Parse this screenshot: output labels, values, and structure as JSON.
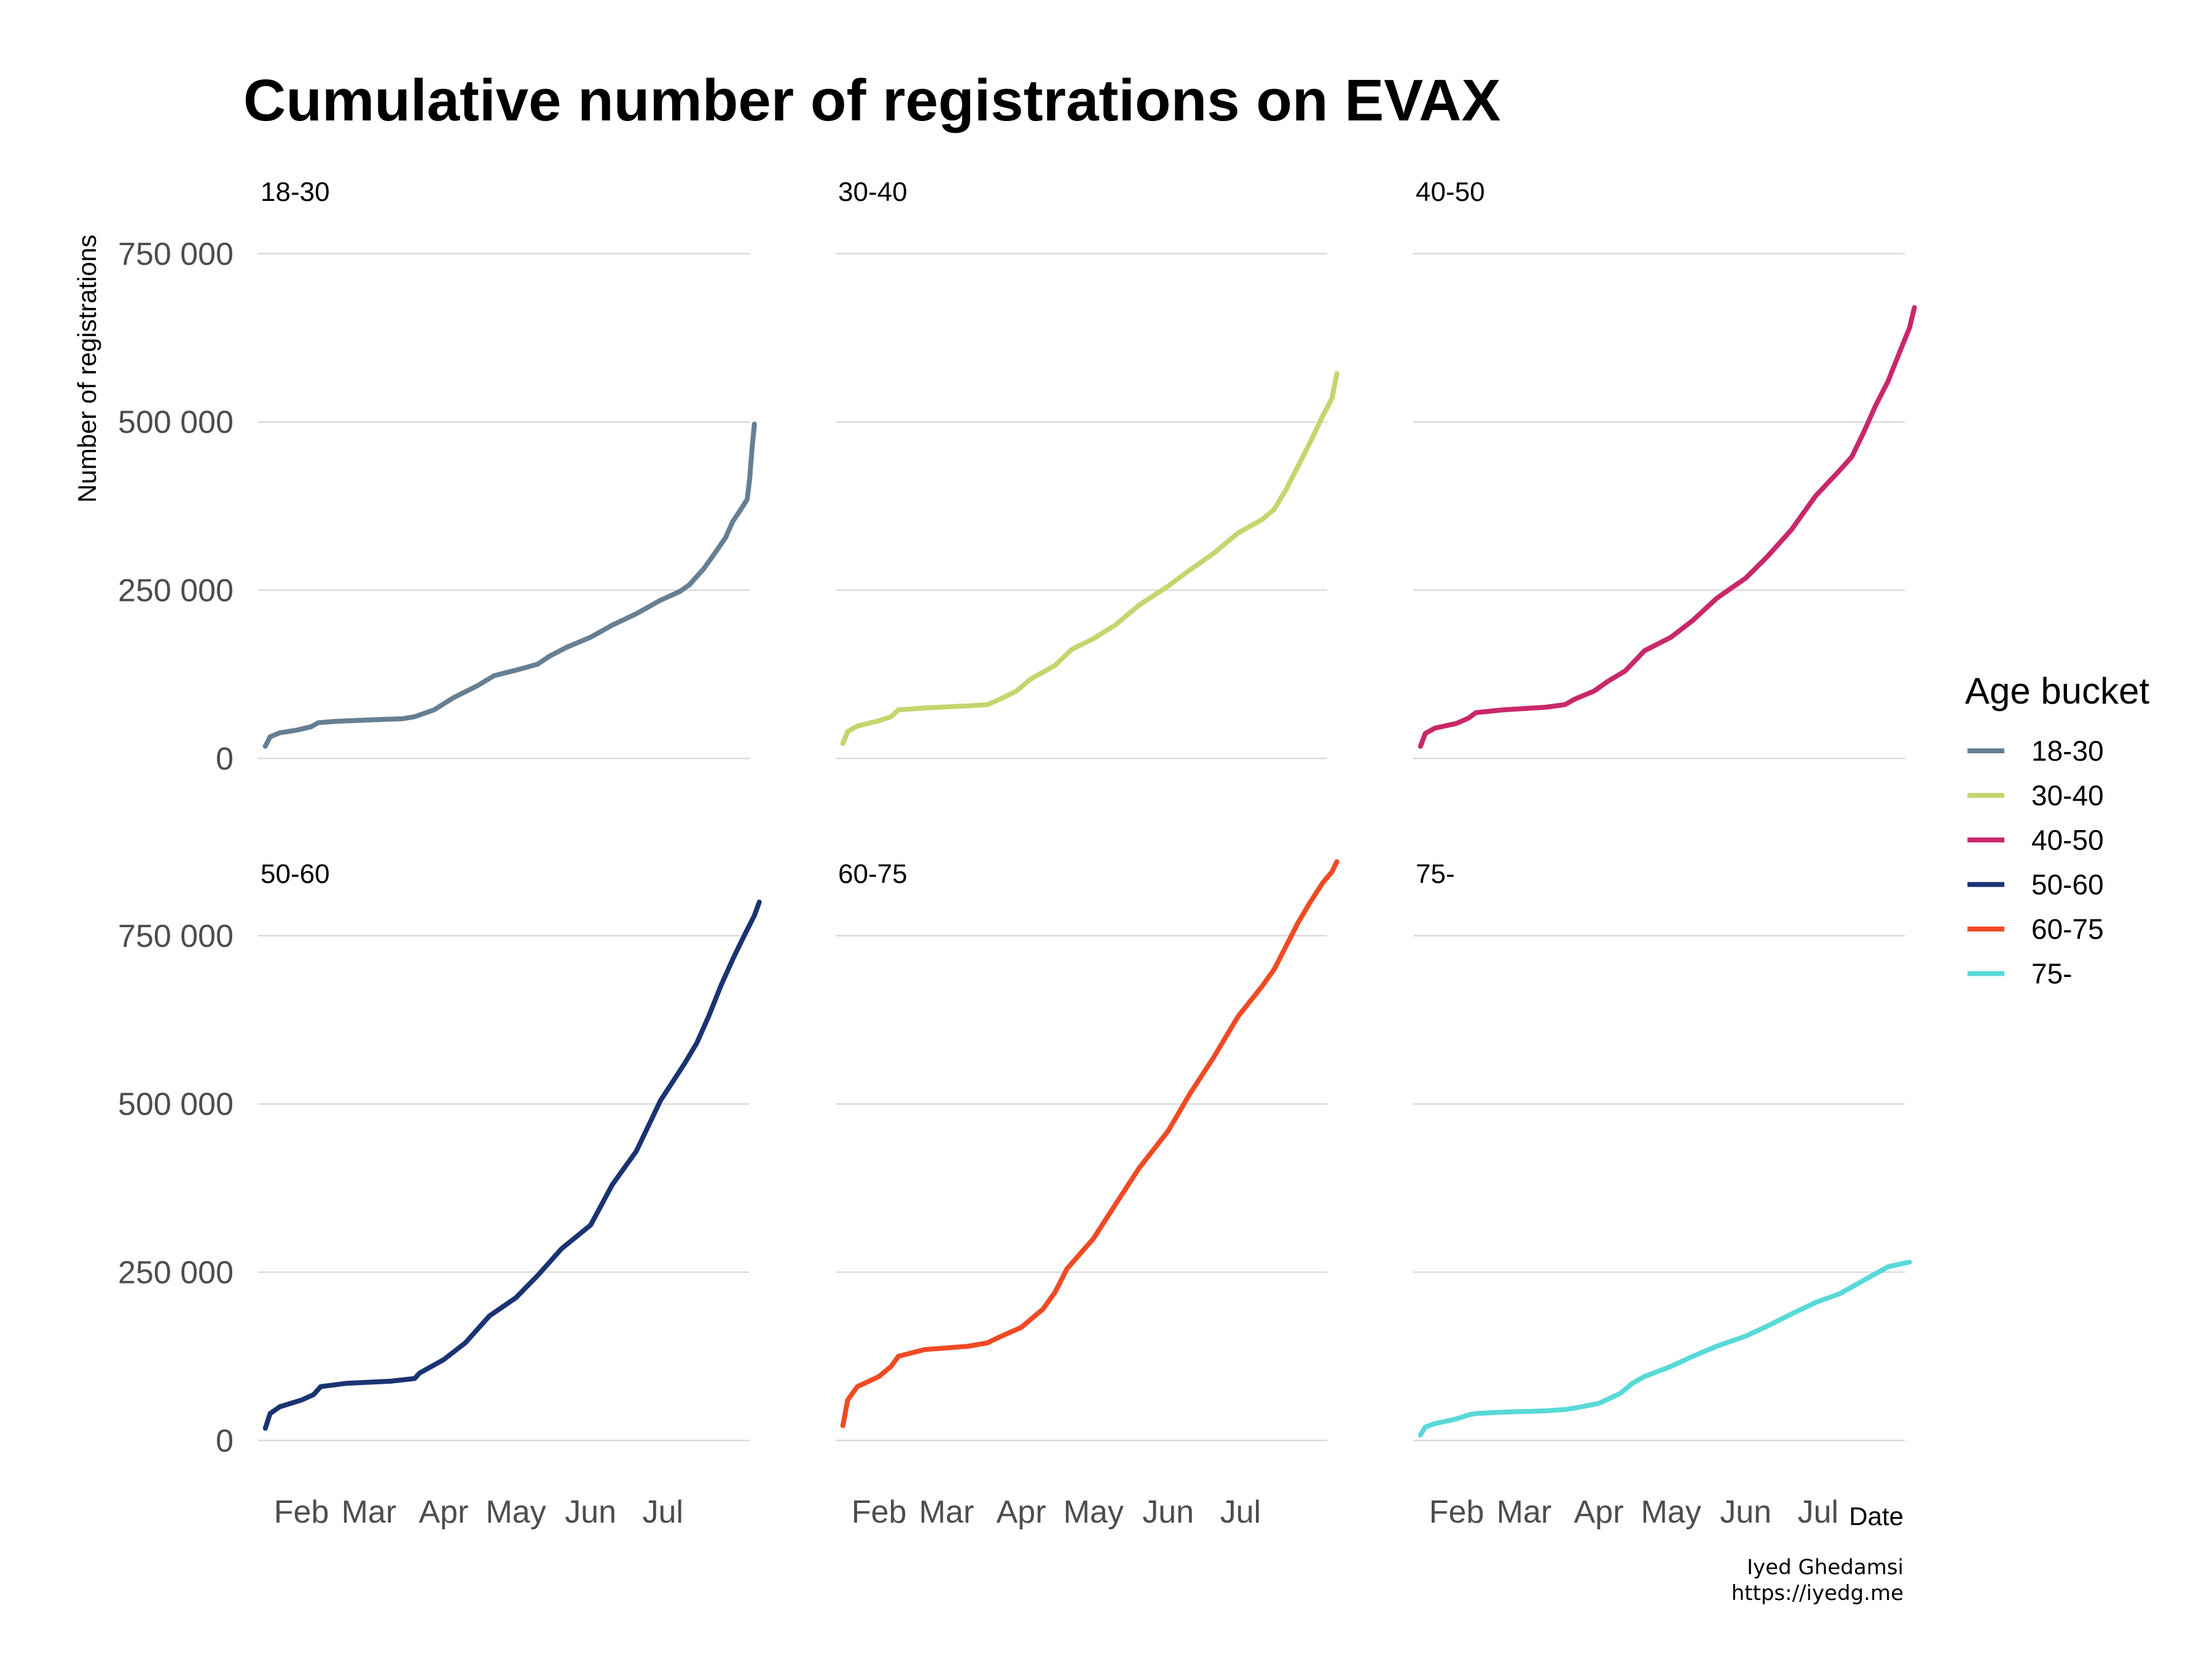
{
  "title": "Cumulative number of registrations on EVAX",
  "ylabel": "Number of registrations",
  "xlabel": "Date",
  "legend": {
    "title": "Age bucket",
    "items": [
      {
        "label": "18-30",
        "color": "#667f93"
      },
      {
        "label": "30-40",
        "color": "#c3d66e"
      },
      {
        "label": "40-50",
        "color": "#c8286a"
      },
      {
        "label": "50-60",
        "color": "#1a3372"
      },
      {
        "label": "60-75",
        "color": "#f04a24"
      },
      {
        "label": "75-",
        "color": "#58d9d9"
      }
    ]
  },
  "caption": {
    "line1": "Iyed Ghedamsi",
    "line2": "https://iyedg.me"
  },
  "chart_data": {
    "type": "line",
    "facet_layout": "2 rows x 3 columns",
    "shared_x_axis": true,
    "shared_y_axis": true,
    "x_ticks": [
      "Feb",
      "Mar",
      "Apr",
      "May",
      "Jun",
      "Jul"
    ],
    "x_tick_dates": [
      "2021-02-01",
      "2021-03-01",
      "2021-04-01",
      "2021-05-01",
      "2021-06-01",
      "2021-07-01"
    ],
    "xlim": [
      "2021-01-14",
      "2021-08-06"
    ],
    "y_ticks": [
      0,
      250000,
      500000,
      750000
    ],
    "y_tick_labels": [
      "0",
      "250 000",
      "500 000",
      "750 000"
    ],
    "ylim": [
      -60000,
      780000
    ],
    "grid": "horizontal major",
    "legend_position": "right",
    "panels": [
      {
        "label": "18-30",
        "color": "#667f93",
        "points": [
          [
            "2021-01-17",
            18000
          ],
          [
            "2021-01-19",
            32000
          ],
          [
            "2021-01-23",
            38000
          ],
          [
            "2021-01-30",
            42000
          ],
          [
            "2021-02-05",
            47000
          ],
          [
            "2021-02-08",
            53000
          ],
          [
            "2021-02-15",
            55000
          ],
          [
            "2021-02-28",
            57000
          ],
          [
            "2021-03-15",
            59000
          ],
          [
            "2021-03-20",
            62000
          ],
          [
            "2021-03-28",
            72000
          ],
          [
            "2021-04-05",
            90000
          ],
          [
            "2021-04-15",
            108000
          ],
          [
            "2021-04-22",
            123000
          ],
          [
            "2021-05-02",
            132000
          ],
          [
            "2021-05-10",
            140000
          ],
          [
            "2021-05-15",
            152000
          ],
          [
            "2021-05-22",
            165000
          ],
          [
            "2021-06-01",
            180000
          ],
          [
            "2021-06-10",
            198000
          ],
          [
            "2021-06-20",
            215000
          ],
          [
            "2021-06-30",
            235000
          ],
          [
            "2021-07-08",
            248000
          ],
          [
            "2021-07-12",
            258000
          ],
          [
            "2021-07-18",
            282000
          ],
          [
            "2021-07-22",
            302000
          ],
          [
            "2021-07-27",
            328000
          ],
          [
            "2021-07-30",
            352000
          ],
          [
            "2021-08-02",
            368000
          ],
          [
            "2021-08-05",
            385000
          ],
          [
            "2021-08-06",
            415000
          ],
          [
            "2021-08-07",
            460000
          ],
          [
            "2021-08-08",
            497000
          ]
        ]
      },
      {
        "label": "30-40",
        "color": "#c3d66e",
        "points": [
          [
            "2021-01-17",
            22000
          ],
          [
            "2021-01-19",
            40000
          ],
          [
            "2021-01-23",
            48000
          ],
          [
            "2021-02-01",
            56000
          ],
          [
            "2021-02-06",
            62000
          ],
          [
            "2021-02-09",
            72000
          ],
          [
            "2021-02-20",
            75000
          ],
          [
            "2021-03-10",
            78000
          ],
          [
            "2021-03-18",
            80000
          ],
          [
            "2021-03-22",
            86000
          ],
          [
            "2021-03-30",
            100000
          ],
          [
            "2021-04-05",
            118000
          ],
          [
            "2021-04-15",
            138000
          ],
          [
            "2021-04-22",
            162000
          ],
          [
            "2021-05-01",
            178000
          ],
          [
            "2021-05-10",
            198000
          ],
          [
            "2021-05-20",
            228000
          ],
          [
            "2021-06-01",
            256000
          ],
          [
            "2021-06-10",
            280000
          ],
          [
            "2021-06-20",
            305000
          ],
          [
            "2021-06-30",
            335000
          ],
          [
            "2021-07-10",
            355000
          ],
          [
            "2021-07-15",
            370000
          ],
          [
            "2021-07-20",
            400000
          ],
          [
            "2021-07-25",
            435000
          ],
          [
            "2021-07-30",
            470000
          ],
          [
            "2021-08-04",
            508000
          ],
          [
            "2021-08-08",
            535000
          ],
          [
            "2021-08-10",
            572000
          ]
        ]
      },
      {
        "label": "40-50",
        "color": "#c8286a",
        "points": [
          [
            "2021-01-17",
            18000
          ],
          [
            "2021-01-19",
            37000
          ],
          [
            "2021-01-23",
            45000
          ],
          [
            "2021-02-01",
            52000
          ],
          [
            "2021-02-06",
            60000
          ],
          [
            "2021-02-09",
            68000
          ],
          [
            "2021-02-20",
            72000
          ],
          [
            "2021-03-10",
            76000
          ],
          [
            "2021-03-18",
            80000
          ],
          [
            "2021-03-22",
            88000
          ],
          [
            "2021-03-30",
            100000
          ],
          [
            "2021-04-05",
            115000
          ],
          [
            "2021-04-12",
            130000
          ],
          [
            "2021-04-20",
            160000
          ],
          [
            "2021-05-01",
            180000
          ],
          [
            "2021-05-10",
            205000
          ],
          [
            "2021-05-20",
            238000
          ],
          [
            "2021-06-01",
            268000
          ],
          [
            "2021-06-10",
            300000
          ],
          [
            "2021-06-20",
            340000
          ],
          [
            "2021-06-30",
            390000
          ],
          [
            "2021-07-10",
            428000
          ],
          [
            "2021-07-15",
            448000
          ],
          [
            "2021-07-20",
            485000
          ],
          [
            "2021-07-25",
            525000
          ],
          [
            "2021-07-30",
            560000
          ],
          [
            "2021-08-04",
            605000
          ],
          [
            "2021-08-08",
            640000
          ],
          [
            "2021-08-10",
            670000
          ]
        ]
      },
      {
        "label": "50-60",
        "color": "#1a3372",
        "points": [
          [
            "2021-01-17",
            18000
          ],
          [
            "2021-01-19",
            40000
          ],
          [
            "2021-01-23",
            50000
          ],
          [
            "2021-02-01",
            60000
          ],
          [
            "2021-02-06",
            68000
          ],
          [
            "2021-02-09",
            80000
          ],
          [
            "2021-02-20",
            85000
          ],
          [
            "2021-03-10",
            88000
          ],
          [
            "2021-03-20",
            92000
          ],
          [
            "2021-03-22",
            100000
          ],
          [
            "2021-04-01",
            120000
          ],
          [
            "2021-04-10",
            145000
          ],
          [
            "2021-04-20",
            185000
          ],
          [
            "2021-05-01",
            212000
          ],
          [
            "2021-05-10",
            245000
          ],
          [
            "2021-05-20",
            285000
          ],
          [
            "2021-06-01",
            320000
          ],
          [
            "2021-06-10",
            380000
          ],
          [
            "2021-06-20",
            430000
          ],
          [
            "2021-06-30",
            505000
          ],
          [
            "2021-07-10",
            560000
          ],
          [
            "2021-07-15",
            590000
          ],
          [
            "2021-07-20",
            630000
          ],
          [
            "2021-07-25",
            675000
          ],
          [
            "2021-07-30",
            715000
          ],
          [
            "2021-08-04",
            752000
          ],
          [
            "2021-08-08",
            780000
          ],
          [
            "2021-08-10",
            800000
          ]
        ]
      },
      {
        "label": "60-75",
        "color": "#f04a24",
        "points": [
          [
            "2021-01-17",
            22000
          ],
          [
            "2021-01-19",
            60000
          ],
          [
            "2021-01-23",
            80000
          ],
          [
            "2021-02-01",
            95000
          ],
          [
            "2021-02-06",
            110000
          ],
          [
            "2021-02-09",
            125000
          ],
          [
            "2021-02-20",
            135000
          ],
          [
            "2021-03-10",
            140000
          ],
          [
            "2021-03-18",
            145000
          ],
          [
            "2021-03-22",
            152000
          ],
          [
            "2021-04-01",
            168000
          ],
          [
            "2021-04-10",
            195000
          ],
          [
            "2021-04-15",
            220000
          ],
          [
            "2021-04-20",
            255000
          ],
          [
            "2021-05-01",
            300000
          ],
          [
            "2021-05-10",
            350000
          ],
          [
            "2021-05-20",
            405000
          ],
          [
            "2021-06-01",
            460000
          ],
          [
            "2021-06-10",
            515000
          ],
          [
            "2021-06-20",
            570000
          ],
          [
            "2021-06-30",
            630000
          ],
          [
            "2021-07-10",
            675000
          ],
          [
            "2021-07-15",
            700000
          ],
          [
            "2021-07-20",
            735000
          ],
          [
            "2021-07-25",
            770000
          ],
          [
            "2021-07-30",
            800000
          ],
          [
            "2021-08-04",
            828000
          ],
          [
            "2021-08-08",
            845000
          ],
          [
            "2021-08-10",
            860000
          ]
        ]
      },
      {
        "label": "75-",
        "color": "#58d9d9",
        "points": [
          [
            "2021-01-17",
            8000
          ],
          [
            "2021-01-19",
            20000
          ],
          [
            "2021-01-23",
            25000
          ],
          [
            "2021-02-01",
            32000
          ],
          [
            "2021-02-06",
            38000
          ],
          [
            "2021-02-09",
            40000
          ],
          [
            "2021-02-20",
            42000
          ],
          [
            "2021-03-10",
            44000
          ],
          [
            "2021-03-18",
            46000
          ],
          [
            "2021-03-22",
            48000
          ],
          [
            "2021-04-01",
            55000
          ],
          [
            "2021-04-10",
            70000
          ],
          [
            "2021-04-15",
            85000
          ],
          [
            "2021-04-20",
            95000
          ],
          [
            "2021-05-01",
            110000
          ],
          [
            "2021-05-10",
            125000
          ],
          [
            "2021-05-20",
            140000
          ],
          [
            "2021-06-01",
            155000
          ],
          [
            "2021-06-10",
            170000
          ],
          [
            "2021-06-20",
            188000
          ],
          [
            "2021-06-30",
            205000
          ],
          [
            "2021-07-10",
            218000
          ],
          [
            "2021-07-15",
            228000
          ],
          [
            "2021-07-20",
            238000
          ],
          [
            "2021-07-25",
            248000
          ],
          [
            "2021-07-30",
            258000
          ],
          [
            "2021-08-04",
            262000
          ],
          [
            "2021-08-08",
            265000
          ]
        ]
      }
    ]
  }
}
